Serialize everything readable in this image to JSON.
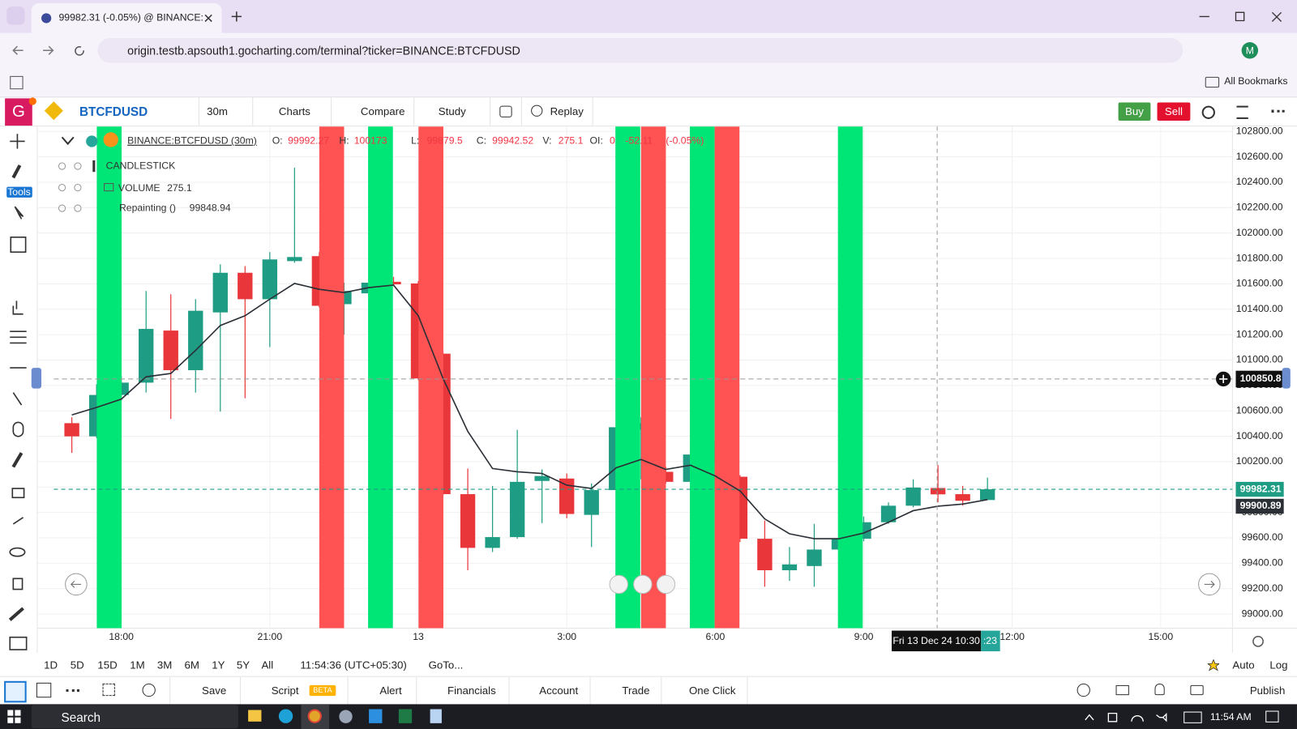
{
  "browser": {
    "tab_title": "99982.31 (-0.05%) @ BINANCE:",
    "url": "origin.testb.apsouth1.gocharting.com/terminal?ticker=BINANCE:BTCFDUSD",
    "profile": "M",
    "bookmarks": "All Bookmarks"
  },
  "toolbar": {
    "logo": "G",
    "symbol": "BTCFDUSD",
    "interval": "30m",
    "items": [
      "Charts",
      "Compare",
      "Study",
      "Replay"
    ],
    "buy": "Buy",
    "sell": "Sell"
  },
  "tools": {
    "label": "Tools"
  },
  "legend": {
    "instrument": "BINANCE:BTCFDUSD (30m)",
    "o": "O:",
    "h": "H:",
    "l": "L:",
    "c": "C:",
    "v": "V:",
    "v_value": "275.1",
    "oi": "OI:",
    "oi_value": "0",
    "change": "-52.11",
    "change_pct": "(-0.05%)",
    "studies": [
      "CANDLESTICK",
      "VOLUME",
      "Repainting ()"
    ],
    "volume_value": "275.1"
  },
  "chart_data": {
    "type": "candlestick",
    "up_color": "#1f9d84",
    "down_color": "#e8363a",
    "ma_color": "#2b2f36",
    "candles": [
      {
        "o": 100503,
        "h": 100549,
        "l": 100269,
        "c": 100399
      },
      {
        "o": 100399,
        "h": 100809,
        "l": 100386,
        "c": 100725
      },
      {
        "o": 100725,
        "h": 100874,
        "l": 100679,
        "c": 100822
      },
      {
        "o": 100822,
        "h": 101544,
        "l": 100744,
        "c": 101245
      },
      {
        "o": 101232,
        "h": 101518,
        "l": 100536,
        "c": 100920
      },
      {
        "o": 100920,
        "h": 101479,
        "l": 100744,
        "c": 101388
      },
      {
        "o": 101375,
        "h": 101753,
        "l": 100594,
        "c": 101687
      },
      {
        "o": 101687,
        "h": 101740,
        "l": 100699,
        "c": 101479
      },
      {
        "o": 101479,
        "h": 101850,
        "l": 101102,
        "c": 101792
      },
      {
        "o": 101779,
        "h": 102514,
        "l": 101766,
        "c": 101811
      },
      {
        "o": 101818,
        "h": 101850,
        "l": 101414,
        "c": 101427
      },
      {
        "o": 101440,
        "h": 101609,
        "l": 101200,
        "c": 101544
      },
      {
        "o": 101525,
        "h": 101655,
        "l": 101219,
        "c": 101609
      },
      {
        "o": 101616,
        "h": 101655,
        "l": 101583,
        "c": 101596
      },
      {
        "o": 101603,
        "h": 101622,
        "l": 100842,
        "c": 100855
      },
      {
        "o": 101050,
        "h": 101070,
        "l": 99931,
        "c": 99944
      },
      {
        "o": 99944,
        "h": 100146,
        "l": 99345,
        "c": 99521
      },
      {
        "o": 99521,
        "h": 100009,
        "l": 99489,
        "c": 99606
      },
      {
        "o": 99606,
        "h": 100451,
        "l": 99593,
        "c": 100041
      },
      {
        "o": 100048,
        "h": 100139,
        "l": 99716,
        "c": 100087
      },
      {
        "o": 100067,
        "h": 100107,
        "l": 99755,
        "c": 99788
      },
      {
        "o": 99781,
        "h": 100028,
        "l": 99528,
        "c": 99976
      },
      {
        "o": 99976,
        "h": 100503,
        "l": 99944,
        "c": 100471
      },
      {
        "o": 100451,
        "h": 100549,
        "l": 100061,
        "c": 100503
      },
      {
        "o": 100120,
        "h": 100159,
        "l": 100028,
        "c": 100041
      },
      {
        "o": 100041,
        "h": 100321,
        "l": 100028,
        "c": 100256
      },
      {
        "o": 100191,
        "h": 100373,
        "l": 99963,
        "c": 100321
      },
      {
        "o": 100081,
        "h": 100094,
        "l": 99567,
        "c": 99593
      },
      {
        "o": 99593,
        "h": 99736,
        "l": 99215,
        "c": 99345
      },
      {
        "o": 99345,
        "h": 99528,
        "l": 99261,
        "c": 99391
      },
      {
        "o": 99378,
        "h": 99710,
        "l": 99215,
        "c": 99508
      },
      {
        "o": 99508,
        "h": 99671,
        "l": 99489,
        "c": 99593
      },
      {
        "o": 99593,
        "h": 99768,
        "l": 99573,
        "c": 99723
      },
      {
        "o": 99723,
        "h": 99879,
        "l": 99710,
        "c": 99853
      },
      {
        "o": 99853,
        "h": 100061,
        "l": 99840,
        "c": 99996
      },
      {
        "o": 99992.27,
        "h": 100173.0,
        "l": 99879.5,
        "c": 99942.52
      },
      {
        "o": 99944,
        "h": 100009,
        "l": 99853,
        "c": 99892
      },
      {
        "o": 99898,
        "h": 100074,
        "l": 99898,
        "c": 99982.31
      }
    ],
    "ma": [
      100568,
      100627,
      100692,
      100868,
      100894,
      101076,
      101272,
      101349,
      101479,
      101603,
      101557,
      101531,
      101570,
      101590,
      101349,
      100855,
      100438,
      100146,
      100120,
      100107,
      100015,
      99989,
      100152,
      100217,
      100139,
      100172,
      100087,
      99970,
      99749,
      99632,
      99593,
      99593,
      99638,
      99723,
      99814,
      99848.94,
      99866,
      99900.89
    ],
    "xlim": [
      -0.73,
      46.9
    ],
    "ylim": [
      98889,
      102839
    ],
    "xticks": [
      {
        "value": 2,
        "label": "18:00"
      },
      {
        "value": 8,
        "label": "21:00"
      },
      {
        "value": 14,
        "label": "13"
      },
      {
        "value": 20,
        "label": "3:00"
      },
      {
        "value": 26,
        "label": "6:00"
      },
      {
        "value": 32,
        "label": "9:00"
      },
      {
        "value": 38,
        "label": "12:00"
      },
      {
        "value": 44,
        "label": "15:00"
      }
    ],
    "yticks": [
      {
        "value": 99000,
        "label": "99000.00"
      },
      {
        "value": 99200,
        "label": "99200.00"
      },
      {
        "value": 99400,
        "label": "99400.00"
      },
      {
        "value": 99600,
        "label": "99600.00"
      },
      {
        "value": 99800,
        "label": "99800.00"
      },
      {
        "value": 100000,
        "label": "100000.00"
      },
      {
        "value": 100200,
        "label": "100200.00"
      },
      {
        "value": 100400,
        "label": "100400.00"
      },
      {
        "value": 100600,
        "label": "100600.00"
      },
      {
        "value": 100800,
        "label": "100800.00"
      },
      {
        "value": 101000,
        "label": "101000.00"
      },
      {
        "value": 101200,
        "label": "101200.00"
      },
      {
        "value": 101400,
        "label": "101400.00"
      },
      {
        "value": 101600,
        "label": "101600.00"
      },
      {
        "value": 101800,
        "label": "101800.00"
      },
      {
        "value": 102000,
        "label": "102000.00"
      },
      {
        "value": 102200,
        "label": "102200.00"
      },
      {
        "value": 102400,
        "label": "102400.00"
      },
      {
        "value": 102600,
        "label": "102600.00"
      },
      {
        "value": 102800,
        "label": "102800.00"
      }
    ],
    "grid": true,
    "crosshair_price": 100850.8,
    "crosshair_time": "Fri 13 Dec 24 10:30",
    "countdown": ":23"
  },
  "range_bar": {
    "ranges": [
      "1D",
      "5D",
      "15D",
      "1M",
      "3M",
      "6M",
      "1Y",
      "5Y",
      "All"
    ],
    "clock": "11:54:36 (UTC+05:30)",
    "goto": "GoTo...",
    "auto": "Auto",
    "log": "Log"
  },
  "bottom_bar": {
    "save": "Save",
    "script": "Script",
    "beta": "BETA",
    "alert": "Alert",
    "financials": "Financials",
    "account": "Account",
    "trade": "Trade",
    "one_click": "One Click",
    "publish": "Publish"
  },
  "taskbar": {
    "search": "Search",
    "time": "11:54 AM"
  }
}
